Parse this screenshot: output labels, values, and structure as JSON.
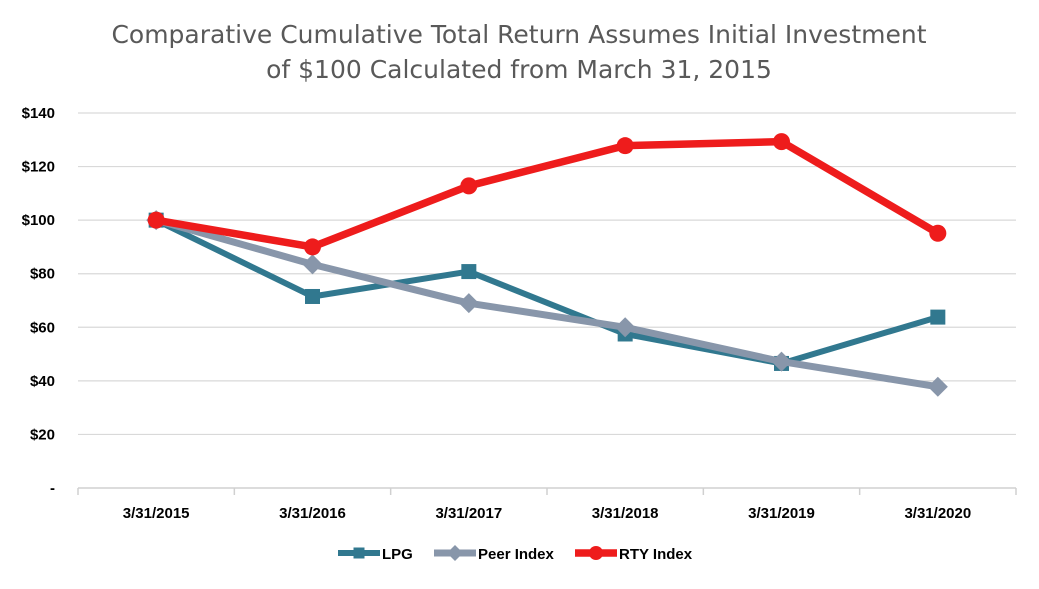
{
  "chart_data": {
    "type": "line",
    "title": "Comparative Cumulative Total Return Assumes Initial Investment of $100 Calculated from March 31, 2015",
    "title_lines": [
      "Comparative Cumulative Total Return Assumes Initial Investment",
      "of $100 Calculated from March 31, 2015"
    ],
    "xlabel": "",
    "ylabel": "",
    "categories": [
      "3/31/2015",
      "3/31/2016",
      "3/31/2017",
      "3/31/2018",
      "3/31/2019",
      "3/31/2020"
    ],
    "ylim": [
      0,
      140
    ],
    "y_ticks": [
      0,
      20,
      40,
      60,
      80,
      100,
      120,
      140
    ],
    "y_tick_labels": [
      "-",
      "$20",
      "$40",
      "$60",
      "$80",
      "$100",
      "$120",
      "$140"
    ],
    "grid": true,
    "legend": "bottom",
    "series": [
      {
        "name": "LPG",
        "color": "#31788f",
        "marker": "square",
        "values": [
          100,
          71.5,
          80.8,
          57.5,
          46.5,
          63.8
        ]
      },
      {
        "name": "Peer Index",
        "color": "#8896aa",
        "marker": "diamond",
        "values": [
          100,
          83.5,
          69,
          60,
          47.2,
          37.8
        ]
      },
      {
        "name": "RTY Index",
        "color": "#ee1c1c",
        "marker": "circle",
        "values": [
          100,
          90,
          112.8,
          127.8,
          129.3,
          95.1
        ]
      }
    ]
  }
}
